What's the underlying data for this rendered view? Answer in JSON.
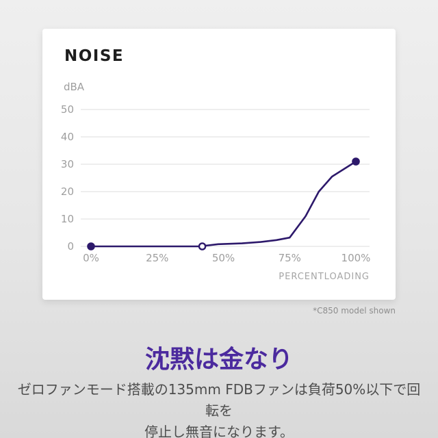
{
  "colors": {
    "background": "#e6e6e6",
    "card": "#ffffff",
    "line": "#2d196b",
    "heading": "#4b2a9e",
    "body_text": "#4d4d4d",
    "muted_text": "#9e9e9e"
  },
  "card": {
    "title": "NOISE",
    "footnote": "*C850 model shown"
  },
  "chart_data": {
    "type": "line",
    "title": "NOISE",
    "ylabel_unit": "dBA",
    "xlabel": "PERCENTLOADING",
    "xlim": [
      0,
      100
    ],
    "ylim": [
      0,
      55
    ],
    "grid": "horizontal",
    "grid_color": "#dcdcdc",
    "tick_color": "#9e9e9e",
    "line_color": "#2d196b",
    "y_ticks": [
      {
        "value": 50,
        "label": "50"
      },
      {
        "value": 40,
        "label": "40"
      },
      {
        "value": 30,
        "label": "30"
      },
      {
        "value": 20,
        "label": "20"
      },
      {
        "value": 10,
        "label": "10"
      },
      {
        "value": 0,
        "label": "0"
      }
    ],
    "x_ticks": [
      {
        "value": 0,
        "label": "0%"
      },
      {
        "value": 25,
        "label": "25%"
      },
      {
        "value": 50,
        "label": "50%"
      },
      {
        "value": 75,
        "label": "75%"
      },
      {
        "value": 100,
        "label": "100%"
      }
    ],
    "series": [
      {
        "name": "noise_dBA",
        "points": [
          {
            "x": 0,
            "y": 0
          },
          {
            "x": 41,
            "y": 0
          },
          {
            "x": 48,
            "y": 0.8
          },
          {
            "x": 57,
            "y": 1.1
          },
          {
            "x": 64,
            "y": 1.6
          },
          {
            "x": 70,
            "y": 2.3
          },
          {
            "x": 75,
            "y": 3.2
          },
          {
            "x": 81,
            "y": 11
          },
          {
            "x": 86,
            "y": 20
          },
          {
            "x": 91,
            "y": 25.5
          },
          {
            "x": 100,
            "y": 31
          }
        ]
      }
    ],
    "markers": [
      {
        "x": 0,
        "y": 0,
        "style": "filled"
      },
      {
        "x": 42,
        "y": 0,
        "style": "open"
      },
      {
        "x": 100,
        "y": 31,
        "style": "filled"
      }
    ]
  },
  "caption": {
    "heading": "沈黙は金なり",
    "body_line1": "ゼロファンモード搭載の135mm FDBファンは負荷50%以下で回転を",
    "body_line2": "停止し無音になります。"
  }
}
